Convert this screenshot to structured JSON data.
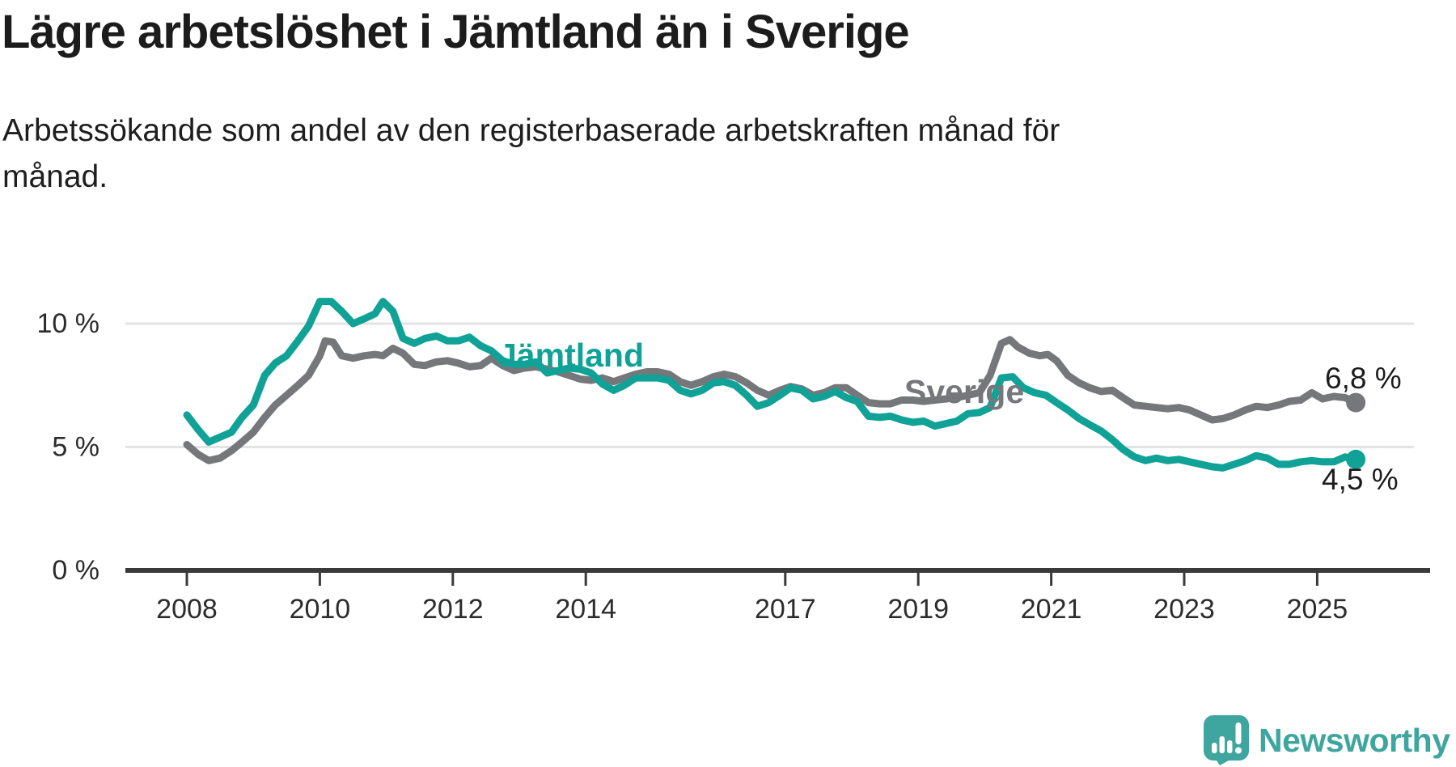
{
  "logo": {
    "text": "Newsworthy",
    "color": "#3ea69f",
    "icon": "newsworthy-speech-bubble-chart-icon"
  },
  "chart_data": {
    "type": "line",
    "title": "Lägre arbetslöshet i Jämtland än i Sverige",
    "subtitle": "Arbetssökande som andel av den registerbaserade arbetskraften månad för månad.",
    "unit": "%",
    "grid": "horizontal",
    "xlim": [
      2007.9,
      2026.4
    ],
    "ylim": [
      0,
      12
    ],
    "x_ticks": [
      2008,
      2010,
      2012,
      2014,
      2017,
      2019,
      2021,
      2023,
      2025
    ],
    "y_ticks": [
      {
        "value": 10,
        "label": "10 %"
      },
      {
        "value": 5,
        "label": "5 %"
      },
      {
        "value": 0,
        "label": "0 %"
      }
    ],
    "colors": {
      "grid": "#e3e3e3",
      "axis": "#3a3a3a",
      "tick_text": "#2c2c2c"
    },
    "series": [
      {
        "name": "Sverige",
        "color": "#76777b",
        "end_value": 6.8,
        "end_label": "6,8 %",
        "points": [
          [
            2008.0,
            5.1
          ],
          [
            2008.17,
            4.7
          ],
          [
            2008.33,
            4.45
          ],
          [
            2008.5,
            4.55
          ],
          [
            2008.67,
            4.85
          ],
          [
            2008.83,
            5.2
          ],
          [
            2009.0,
            5.6
          ],
          [
            2009.17,
            6.2
          ],
          [
            2009.33,
            6.7
          ],
          [
            2009.5,
            7.1
          ],
          [
            2009.67,
            7.5
          ],
          [
            2009.83,
            7.9
          ],
          [
            2010.0,
            8.7
          ],
          [
            2010.08,
            9.3
          ],
          [
            2010.2,
            9.25
          ],
          [
            2010.33,
            8.7
          ],
          [
            2010.5,
            8.6
          ],
          [
            2010.67,
            8.7
          ],
          [
            2010.83,
            8.75
          ],
          [
            2010.95,
            8.7
          ],
          [
            2011.1,
            9.0
          ],
          [
            2011.25,
            8.8
          ],
          [
            2011.42,
            8.35
          ],
          [
            2011.58,
            8.3
          ],
          [
            2011.75,
            8.45
          ],
          [
            2011.92,
            8.5
          ],
          [
            2012.08,
            8.4
          ],
          [
            2012.25,
            8.25
          ],
          [
            2012.42,
            8.3
          ],
          [
            2012.58,
            8.6
          ],
          [
            2012.75,
            8.3
          ],
          [
            2012.92,
            8.1
          ],
          [
            2013.08,
            8.2
          ],
          [
            2013.25,
            8.25
          ],
          [
            2013.42,
            8.15
          ],
          [
            2013.58,
            8.05
          ],
          [
            2013.75,
            7.9
          ],
          [
            2013.92,
            7.75
          ],
          [
            2014.08,
            7.7
          ],
          [
            2014.25,
            7.8
          ],
          [
            2014.42,
            7.65
          ],
          [
            2014.58,
            7.8
          ],
          [
            2014.75,
            7.95
          ],
          [
            2014.92,
            8.05
          ],
          [
            2015.08,
            8.05
          ],
          [
            2015.25,
            7.95
          ],
          [
            2015.42,
            7.65
          ],
          [
            2015.58,
            7.5
          ],
          [
            2015.75,
            7.65
          ],
          [
            2015.92,
            7.85
          ],
          [
            2016.08,
            7.95
          ],
          [
            2016.25,
            7.85
          ],
          [
            2016.42,
            7.6
          ],
          [
            2016.58,
            7.3
          ],
          [
            2016.75,
            7.1
          ],
          [
            2016.92,
            7.3
          ],
          [
            2017.08,
            7.45
          ],
          [
            2017.25,
            7.35
          ],
          [
            2017.42,
            7.1
          ],
          [
            2017.58,
            7.2
          ],
          [
            2017.75,
            7.4
          ],
          [
            2017.92,
            7.4
          ],
          [
            2018.08,
            7.1
          ],
          [
            2018.25,
            6.8
          ],
          [
            2018.42,
            6.75
          ],
          [
            2018.58,
            6.75
          ],
          [
            2018.75,
            6.9
          ],
          [
            2018.92,
            6.9
          ],
          [
            2019.08,
            6.85
          ],
          [
            2019.25,
            6.9
          ],
          [
            2019.42,
            6.95
          ],
          [
            2019.58,
            7.0
          ],
          [
            2019.75,
            7.1
          ],
          [
            2019.92,
            7.2
          ],
          [
            2020.08,
            7.9
          ],
          [
            2020.25,
            9.2
          ],
          [
            2020.38,
            9.35
          ],
          [
            2020.5,
            9.05
          ],
          [
            2020.67,
            8.8
          ],
          [
            2020.83,
            8.7
          ],
          [
            2020.95,
            8.75
          ],
          [
            2021.08,
            8.5
          ],
          [
            2021.25,
            7.9
          ],
          [
            2021.42,
            7.6
          ],
          [
            2021.58,
            7.4
          ],
          [
            2021.75,
            7.25
          ],
          [
            2021.92,
            7.3
          ],
          [
            2022.08,
            7.0
          ],
          [
            2022.25,
            6.7
          ],
          [
            2022.42,
            6.65
          ],
          [
            2022.58,
            6.6
          ],
          [
            2022.75,
            6.55
          ],
          [
            2022.92,
            6.6
          ],
          [
            2023.08,
            6.5
          ],
          [
            2023.25,
            6.3
          ],
          [
            2023.42,
            6.1
          ],
          [
            2023.58,
            6.15
          ],
          [
            2023.75,
            6.3
          ],
          [
            2023.92,
            6.5
          ],
          [
            2024.08,
            6.65
          ],
          [
            2024.25,
            6.6
          ],
          [
            2024.42,
            6.7
          ],
          [
            2024.58,
            6.85
          ],
          [
            2024.75,
            6.9
          ],
          [
            2024.92,
            7.2
          ],
          [
            2025.08,
            6.95
          ],
          [
            2025.25,
            7.05
          ],
          [
            2025.42,
            7.0
          ],
          [
            2025.58,
            6.8
          ]
        ]
      },
      {
        "name": "Jämtland",
        "color": "#10a296",
        "end_value": 4.5,
        "end_label": "4,5 %",
        "points": [
          [
            2008.0,
            6.3
          ],
          [
            2008.17,
            5.7
          ],
          [
            2008.33,
            5.2
          ],
          [
            2008.5,
            5.4
          ],
          [
            2008.67,
            5.6
          ],
          [
            2008.83,
            6.2
          ],
          [
            2009.0,
            6.7
          ],
          [
            2009.17,
            7.9
          ],
          [
            2009.33,
            8.4
          ],
          [
            2009.5,
            8.7
          ],
          [
            2009.67,
            9.3
          ],
          [
            2009.83,
            9.9
          ],
          [
            2010.0,
            10.9
          ],
          [
            2010.17,
            10.9
          ],
          [
            2010.33,
            10.5
          ],
          [
            2010.5,
            10.0
          ],
          [
            2010.67,
            10.2
          ],
          [
            2010.83,
            10.4
          ],
          [
            2010.95,
            10.9
          ],
          [
            2011.1,
            10.5
          ],
          [
            2011.25,
            9.4
          ],
          [
            2011.42,
            9.2
          ],
          [
            2011.58,
            9.4
          ],
          [
            2011.75,
            9.5
          ],
          [
            2011.92,
            9.3
          ],
          [
            2012.08,
            9.3
          ],
          [
            2012.25,
            9.45
          ],
          [
            2012.42,
            9.1
          ],
          [
            2012.58,
            8.9
          ],
          [
            2012.75,
            8.5
          ],
          [
            2012.92,
            8.35
          ],
          [
            2013.08,
            8.35
          ],
          [
            2013.25,
            8.45
          ],
          [
            2013.42,
            8.0
          ],
          [
            2013.58,
            8.1
          ],
          [
            2013.75,
            8.2
          ],
          [
            2013.92,
            8.15
          ],
          [
            2014.08,
            8.0
          ],
          [
            2014.25,
            7.55
          ],
          [
            2014.42,
            7.3
          ],
          [
            2014.58,
            7.5
          ],
          [
            2014.75,
            7.8
          ],
          [
            2014.92,
            7.8
          ],
          [
            2015.08,
            7.8
          ],
          [
            2015.25,
            7.7
          ],
          [
            2015.42,
            7.3
          ],
          [
            2015.58,
            7.15
          ],
          [
            2015.75,
            7.3
          ],
          [
            2015.92,
            7.6
          ],
          [
            2016.08,
            7.65
          ],
          [
            2016.25,
            7.5
          ],
          [
            2016.42,
            7.1
          ],
          [
            2016.58,
            6.65
          ],
          [
            2016.75,
            6.8
          ],
          [
            2016.92,
            7.1
          ],
          [
            2017.08,
            7.4
          ],
          [
            2017.25,
            7.3
          ],
          [
            2017.42,
            6.95
          ],
          [
            2017.58,
            7.05
          ],
          [
            2017.75,
            7.25
          ],
          [
            2017.92,
            7.0
          ],
          [
            2018.08,
            6.85
          ],
          [
            2018.25,
            6.25
          ],
          [
            2018.42,
            6.2
          ],
          [
            2018.58,
            6.25
          ],
          [
            2018.75,
            6.1
          ],
          [
            2018.92,
            6.0
          ],
          [
            2019.08,
            6.05
          ],
          [
            2019.25,
            5.85
          ],
          [
            2019.42,
            5.95
          ],
          [
            2019.58,
            6.05
          ],
          [
            2019.75,
            6.35
          ],
          [
            2019.92,
            6.4
          ],
          [
            2020.08,
            6.6
          ],
          [
            2020.25,
            7.8
          ],
          [
            2020.42,
            7.85
          ],
          [
            2020.58,
            7.4
          ],
          [
            2020.75,
            7.2
          ],
          [
            2020.92,
            7.1
          ],
          [
            2021.08,
            6.8
          ],
          [
            2021.25,
            6.5
          ],
          [
            2021.42,
            6.15
          ],
          [
            2021.58,
            5.9
          ],
          [
            2021.75,
            5.65
          ],
          [
            2021.92,
            5.3
          ],
          [
            2022.08,
            4.9
          ],
          [
            2022.25,
            4.6
          ],
          [
            2022.42,
            4.45
          ],
          [
            2022.58,
            4.55
          ],
          [
            2022.75,
            4.45
          ],
          [
            2022.92,
            4.5
          ],
          [
            2023.08,
            4.4
          ],
          [
            2023.25,
            4.3
          ],
          [
            2023.42,
            4.2
          ],
          [
            2023.58,
            4.15
          ],
          [
            2023.75,
            4.3
          ],
          [
            2023.92,
            4.45
          ],
          [
            2024.08,
            4.65
          ],
          [
            2024.25,
            4.55
          ],
          [
            2024.42,
            4.3
          ],
          [
            2024.58,
            4.3
          ],
          [
            2024.75,
            4.4
          ],
          [
            2024.92,
            4.45
          ],
          [
            2025.08,
            4.4
          ],
          [
            2025.25,
            4.4
          ],
          [
            2025.42,
            4.6
          ],
          [
            2025.58,
            4.5
          ]
        ]
      }
    ]
  }
}
